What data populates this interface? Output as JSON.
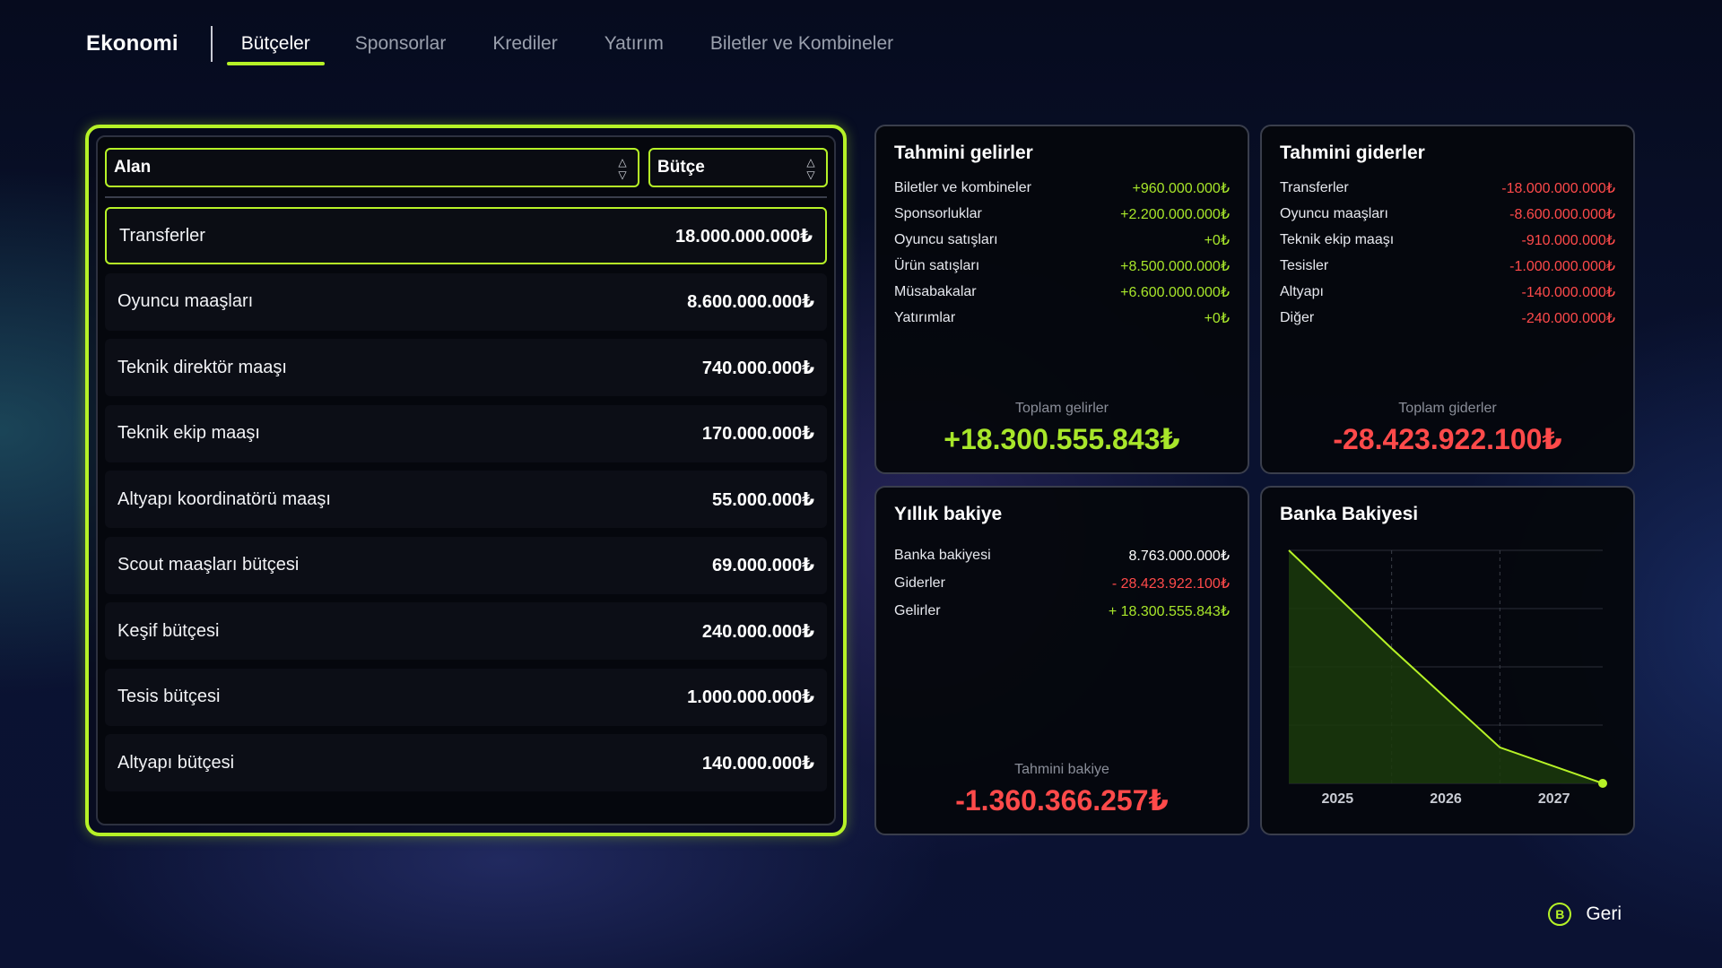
{
  "nav": {
    "brand": "Ekonomi",
    "tabs": [
      {
        "label": "Bütçeler",
        "active": true
      },
      {
        "label": "Sponsorlar",
        "active": false
      },
      {
        "label": "Krediler",
        "active": false
      },
      {
        "label": "Yatırım",
        "active": false
      },
      {
        "label": "Biletler ve Kombineler",
        "active": false
      }
    ]
  },
  "budget": {
    "sort_area_label": "Alan",
    "sort_budget_label": "Bütçe",
    "rows": [
      {
        "label": "Transferler",
        "value": "18.000.000.000₺"
      },
      {
        "label": "Oyuncu maaşları",
        "value": "8.600.000.000₺"
      },
      {
        "label": "Teknik direktör maaşı",
        "value": "740.000.000₺"
      },
      {
        "label": "Teknik ekip maaşı",
        "value": "170.000.000₺"
      },
      {
        "label": "Altyapı koordinatörü maaşı",
        "value": "55.000.000₺"
      },
      {
        "label": "Scout maaşları bütçesi",
        "value": "69.000.000₺"
      },
      {
        "label": "Keşif bütçesi",
        "value": "240.000.000₺"
      },
      {
        "label": "Tesis bütçesi",
        "value": "1.000.000.000₺"
      },
      {
        "label": "Altyapı bütçesi",
        "value": "140.000.000₺"
      }
    ]
  },
  "income": {
    "title": "Tahmini gelirler",
    "items": [
      {
        "label": "Biletler ve kombineler",
        "value": "+960.000.000₺"
      },
      {
        "label": "Sponsorluklar",
        "value": "+2.200.000.000₺"
      },
      {
        "label": "Oyuncu satışları",
        "value": "+0₺"
      },
      {
        "label": "Ürün satışları",
        "value": "+8.500.000.000₺"
      },
      {
        "label": "Müsabakalar",
        "value": "+6.600.000.000₺"
      },
      {
        "label": "Yatırımlar",
        "value": "+0₺"
      }
    ],
    "total_label": "Toplam gelirler",
    "total_value": "+18.300.555.843₺"
  },
  "expense": {
    "title": "Tahmini giderler",
    "items": [
      {
        "label": "Transferler",
        "value": "-18.000.000.000₺"
      },
      {
        "label": "Oyuncu maaşları",
        "value": "-8.600.000.000₺"
      },
      {
        "label": "Teknik ekip maaşı",
        "value": "-910.000.000₺"
      },
      {
        "label": "Tesisler",
        "value": "-1.000.000.000₺"
      },
      {
        "label": "Altyapı",
        "value": "-140.000.000₺"
      },
      {
        "label": "Diğer",
        "value": "-240.000.000₺"
      }
    ],
    "total_label": "Toplam giderler",
    "total_value": "-28.423.922.100₺"
  },
  "yearly": {
    "title": "Yıllık bakiye",
    "items": [
      {
        "label": "Banka bakiyesi",
        "value": "8.763.000.000₺"
      },
      {
        "label": "Giderler",
        "value": "- 28.423.922.100₺"
      },
      {
        "label": "Gelirler",
        "value": "+ 18.300.555.843₺"
      }
    ],
    "total_label": "Tahmini bakiye",
    "total_value": "-1.360.366.257₺"
  },
  "bank": {
    "title": "Banka Bakiyesi"
  },
  "chart_data": {
    "type": "area",
    "title": "Banka Bakiyesi",
    "categories": [
      "2025",
      "2026",
      "2027"
    ],
    "note_values_estimated": false,
    "series": [
      {
        "values": [
          8.763,
          4.5,
          -1.36
        ]
      }
    ],
    "x": [
      2024.55,
      2025.5,
      2026.5,
      2027.45
    ],
    "y": [
      8.763,
      4.5,
      0.2,
      -1.36
    ],
    "xlabel": "",
    "ylabel": "",
    "grid": true,
    "colors": {
      "line": "#b6f227",
      "fill": "#1b3a0c"
    }
  },
  "back": {
    "key": "B",
    "label": "Geri"
  },
  "colors": {
    "accent": "#b6f227",
    "positive": "#a8e62a",
    "negative": "#ff4a4a"
  }
}
